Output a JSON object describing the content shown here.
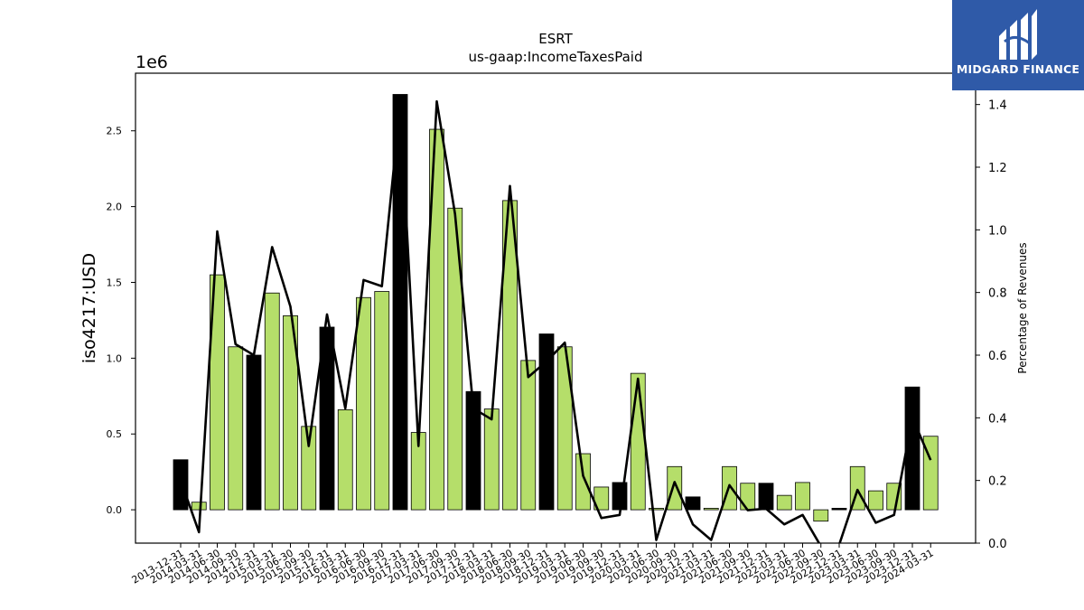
{
  "brand": {
    "name": "MIDGARD FINANCE",
    "color": "#2f5aa8"
  },
  "chart_data": {
    "type": "bar",
    "title": "ESRT",
    "subtitle": "us-gaap:IncomeTaxesPaid",
    "ylabel": "iso4217:USD",
    "y_scale_label": "1e6",
    "y2label": "Percentage of Revenues",
    "ylim": [
      -220000,
      2880000
    ],
    "y2lim": [
      0.0,
      1.5
    ],
    "yticks": [
      "0.0",
      "0.5",
      "1.0",
      "1.5",
      "2.0",
      "2.5"
    ],
    "y2ticks": [
      "0.0",
      "0.2",
      "0.4",
      "0.6",
      "0.8",
      "1.0",
      "1.2",
      "1.4"
    ],
    "grid": false,
    "categories": [
      "2013-12-31",
      "2014-03-31",
      "2014-06-30",
      "2014-09-30",
      "2014-12-31",
      "2015-03-31",
      "2015-06-30",
      "2015-09-30",
      "2015-12-31",
      "2016-03-31",
      "2016-06-30",
      "2016-09-30",
      "2016-12-31",
      "2017-03-31",
      "2017-06-30",
      "2017-09-30",
      "2017-12-31",
      "2018-03-31",
      "2018-06-30",
      "2018-09-30",
      "2018-12-31",
      "2019-03-31",
      "2019-06-30",
      "2019-09-30",
      "2019-12-31",
      "2020-03-31",
      "2020-06-30",
      "2020-09-30",
      "2020-12-31",
      "2021-03-31",
      "2021-06-30",
      "2021-09-30",
      "2021-12-31",
      "2022-03-31",
      "2022-06-30",
      "2022-09-30",
      "2022-12-31",
      "2023-03-31",
      "2023-06-30",
      "2023-09-30",
      "2023-12-31",
      "2024-03-31"
    ],
    "series": [
      {
        "kind": "bar",
        "axis": "left",
        "values": [
          330000,
          50000,
          1550000,
          1075000,
          1020000,
          1430000,
          1280000,
          550000,
          1205000,
          660000,
          1400000,
          1440000,
          2740000,
          510000,
          2510000,
          1990000,
          780000,
          665000,
          2040000,
          985000,
          1160000,
          1075000,
          370000,
          150000,
          180000,
          900000,
          10000,
          285000,
          85000,
          10000,
          285000,
          175000,
          175000,
          95000,
          180000,
          -75000,
          10000,
          285000,
          125000,
          175000,
          810000,
          485000
        ],
        "highlight": [
          true,
          false,
          false,
          false,
          true,
          false,
          false,
          false,
          true,
          false,
          false,
          false,
          true,
          false,
          false,
          false,
          true,
          false,
          false,
          false,
          true,
          false,
          false,
          false,
          true,
          false,
          false,
          false,
          true,
          false,
          false,
          false,
          true,
          false,
          false,
          false,
          true,
          false,
          false,
          false,
          true,
          false
        ],
        "colors": {
          "normal": "#b5de6a",
          "highlight": "#000000",
          "edge": "#000000"
        }
      },
      {
        "kind": "line",
        "axis": "right",
        "values": [
          0.2,
          0.035,
          0.995,
          0.635,
          0.6,
          0.945,
          0.755,
          0.31,
          0.73,
          0.43,
          0.84,
          0.82,
          1.4,
          0.31,
          1.41,
          1.05,
          0.43,
          0.395,
          1.14,
          0.53,
          0.58,
          0.64,
          0.215,
          0.08,
          0.09,
          0.525,
          0.01,
          0.195,
          0.06,
          0.01,
          0.185,
          0.105,
          0.11,
          0.06,
          0.09,
          -0.01,
          -0.005,
          0.17,
          0.065,
          0.09,
          0.4,
          0.265
        ],
        "color": "#000000"
      }
    ]
  }
}
